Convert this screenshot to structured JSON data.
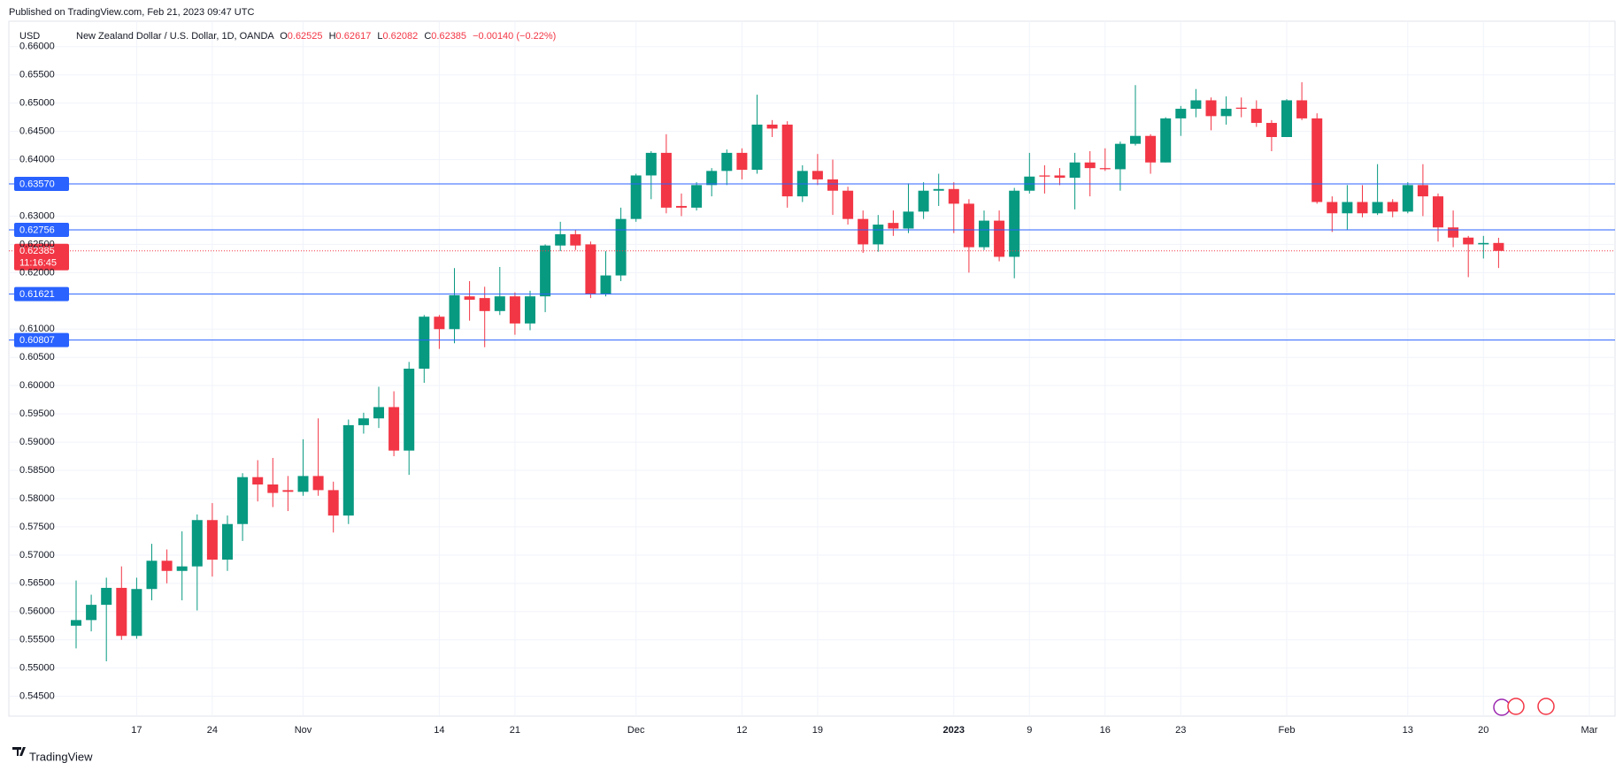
{
  "header": {
    "published": "Published on TradingView.com, Feb 21, 2023 09:47 UTC",
    "footer": "TradingView"
  },
  "chart_data": {
    "type": "candlestick",
    "currency": "USD",
    "symbol": "New Zealand Dollar / U.S. Dollar, 1D, OANDA",
    "legend_labels": {
      "open": "O",
      "high": "H",
      "low": "L",
      "close": "C"
    },
    "legend_values": {
      "open": 0.62525,
      "high": 0.62617,
      "low": 0.62082,
      "close": 0.62385
    },
    "change": "−0.00140 (−0.22%)",
    "up_color": "#089981",
    "down_color": "#f23645",
    "level_color": "#2962ff",
    "grid": true,
    "categories": [
      null,
      null,
      null,
      null,
      "17",
      null,
      null,
      null,
      null,
      "24",
      null,
      null,
      null,
      null,
      null,
      "Nov",
      null,
      null,
      null,
      null,
      null,
      null,
      null,
      null,
      "14",
      null,
      null,
      null,
      null,
      "21",
      null,
      null,
      null,
      null,
      null,
      null,
      null,
      "Dec",
      null,
      null,
      null,
      null,
      null,
      null,
      "12",
      null,
      null,
      null,
      null,
      "19",
      null,
      null,
      null,
      null,
      null,
      null,
      null,
      null,
      "2023",
      null,
      null,
      null,
      null,
      "9",
      null,
      null,
      null,
      null,
      "16",
      null,
      null,
      null,
      null,
      "23",
      null,
      null,
      null,
      null,
      null,
      null,
      "Feb",
      null,
      null,
      null,
      null,
      null,
      null,
      null,
      "13",
      null,
      null,
      null,
      null,
      "20",
      null,
      null,
      null,
      null,
      null,
      null,
      "Mar"
    ],
    "open": [
      0.5575,
      0.5585,
      0.5612,
      0.5642,
      0.5557,
      0.564,
      0.569,
      0.5672,
      0.568,
      0.5762,
      0.5692,
      0.5755,
      0.5838,
      0.5825,
      0.5815,
      0.5812,
      0.584,
      0.5815,
      0.577,
      0.593,
      0.5942,
      0.5962,
      0.5885,
      0.603,
      0.6122,
      0.61,
      0.6158,
      0.6155,
      0.6132,
      0.6158,
      0.611,
      0.6158,
      0.6248,
      0.6268,
      0.625,
      0.6162,
      0.6195,
      0.6295,
      0.6372,
      0.6412,
      0.6318,
      0.6315,
      0.6355,
      0.638,
      0.6412,
      0.6382,
      0.6462,
      0.6462,
      0.6335,
      0.638,
      0.6365,
      0.6345,
      0.6295,
      0.625,
      0.6288,
      0.6278,
      0.6308,
      0.6345,
      0.6348,
      0.6322,
      0.6245,
      0.6292,
      0.6228,
      0.6345,
      0.6372,
      0.6372,
      0.6368,
      0.6395,
      0.6385,
      0.6383,
      0.6428,
      0.6442,
      0.6395,
      0.6473,
      0.649,
      0.6505,
      0.6477,
      0.6492,
      0.649,
      0.6465,
      0.644,
      0.6505,
      0.6473,
      0.6325,
      0.6305,
      0.6325,
      0.6305,
      0.6325,
      0.6308,
      0.6355,
      0.6335,
      0.628,
      0.6262,
      0.625,
      0.62525,
      null,
      null,
      null,
      null,
      null,
      null
    ],
    "high": [
      0.5655,
      0.563,
      0.566,
      0.568,
      0.566,
      0.572,
      0.571,
      0.5742,
      0.5772,
      0.5792,
      0.577,
      0.5845,
      0.5868,
      0.5872,
      0.584,
      0.5905,
      0.5942,
      0.583,
      0.594,
      0.5952,
      0.5998,
      0.599,
      0.6042,
      0.6125,
      0.6125,
      0.6208,
      0.6185,
      0.6175,
      0.621,
      0.6165,
      0.6168,
      0.625,
      0.629,
      0.6275,
      0.6255,
      0.6238,
      0.6315,
      0.6375,
      0.6415,
      0.6445,
      0.634,
      0.636,
      0.6385,
      0.6418,
      0.642,
      0.6515,
      0.647,
      0.6468,
      0.639,
      0.641,
      0.64,
      0.6352,
      0.631,
      0.6302,
      0.631,
      0.6358,
      0.636,
      0.6375,
      0.636,
      0.633,
      0.631,
      0.631,
      0.635,
      0.6412,
      0.639,
      0.6385,
      0.6412,
      0.6415,
      0.642,
      0.6432,
      0.6532,
      0.6445,
      0.6475,
      0.6495,
      0.6525,
      0.651,
      0.6512,
      0.651,
      0.6505,
      0.647,
      0.6507,
      0.6537,
      0.6482,
      0.6335,
      0.6355,
      0.6355,
      0.6392,
      0.633,
      0.636,
      0.6392,
      0.634,
      0.631,
      0.6265,
      0.6265,
      0.62617,
      null,
      null,
      null,
      null,
      null,
      null
    ],
    "low": [
      0.5535,
      0.5565,
      0.5512,
      0.555,
      0.5552,
      0.562,
      0.565,
      0.562,
      0.5602,
      0.5662,
      0.5672,
      0.5725,
      0.5795,
      0.5785,
      0.5778,
      0.5805,
      0.5805,
      0.574,
      0.5755,
      0.5915,
      0.5925,
      0.5875,
      0.5842,
      0.6005,
      0.6065,
      0.6075,
      0.6115,
      0.6068,
      0.6125,
      0.609,
      0.6098,
      0.613,
      0.6238,
      0.624,
      0.6155,
      0.6158,
      0.6185,
      0.629,
      0.633,
      0.6305,
      0.63,
      0.631,
      0.6335,
      0.6355,
      0.6365,
      0.6375,
      0.644,
      0.6315,
      0.6325,
      0.6355,
      0.6302,
      0.6285,
      0.6235,
      0.6237,
      0.6265,
      0.627,
      0.6295,
      0.6318,
      0.627,
      0.62,
      0.624,
      0.622,
      0.619,
      0.634,
      0.634,
      0.6355,
      0.6312,
      0.6335,
      0.638,
      0.6345,
      0.6425,
      0.6375,
      0.6395,
      0.6442,
      0.6475,
      0.6452,
      0.6462,
      0.6475,
      0.6458,
      0.6415,
      0.644,
      0.647,
      0.6322,
      0.6272,
      0.6275,
      0.6298,
      0.6302,
      0.6298,
      0.6305,
      0.63,
      0.6255,
      0.6245,
      0.6192,
      0.6225,
      0.62082,
      null,
      null,
      null,
      null,
      null,
      null
    ],
    "close": [
      0.5585,
      0.5612,
      0.5642,
      0.5557,
      0.564,
      0.569,
      0.5672,
      0.568,
      0.5762,
      0.5692,
      0.5755,
      0.5838,
      0.5825,
      0.581,
      0.5812,
      0.584,
      0.5815,
      0.577,
      0.593,
      0.5942,
      0.5962,
      0.5885,
      0.603,
      0.6122,
      0.61,
      0.616,
      0.6152,
      0.6132,
      0.6158,
      0.611,
      0.6158,
      0.6248,
      0.6268,
      0.6248,
      0.6162,
      0.6195,
      0.6295,
      0.6372,
      0.6412,
      0.6315,
      0.6315,
      0.6355,
      0.638,
      0.6412,
      0.6382,
      0.6462,
      0.6455,
      0.6335,
      0.638,
      0.6365,
      0.6345,
      0.6295,
      0.625,
      0.6285,
      0.6278,
      0.6308,
      0.6345,
      0.6348,
      0.6322,
      0.6245,
      0.6292,
      0.6228,
      0.6345,
      0.637,
      0.637,
      0.6368,
      0.6395,
      0.6385,
      0.6383,
      0.6428,
      0.6442,
      0.6395,
      0.6473,
      0.649,
      0.6505,
      0.6477,
      0.649,
      0.649,
      0.6465,
      0.644,
      0.6505,
      0.6473,
      0.6325,
      0.6305,
      0.6325,
      0.6305,
      0.6325,
      0.6308,
      0.6355,
      0.6335,
      0.628,
      0.6262,
      0.625,
      0.62525,
      0.62385,
      null,
      null,
      null,
      null,
      null,
      null
    ],
    "ylim": [
      0.5415,
      0.6645
    ],
    "yticks": [
      {
        "value": 0.545,
        "label": "0.54500"
      },
      {
        "value": 0.55,
        "label": "0.55000"
      },
      {
        "value": 0.555,
        "label": "0.55500"
      },
      {
        "value": 0.56,
        "label": "0.56000"
      },
      {
        "value": 0.565,
        "label": "0.56500"
      },
      {
        "value": 0.57,
        "label": "0.57000"
      },
      {
        "value": 0.575,
        "label": "0.57500"
      },
      {
        "value": 0.58,
        "label": "0.58000"
      },
      {
        "value": 0.585,
        "label": "0.58500"
      },
      {
        "value": 0.59,
        "label": "0.59000"
      },
      {
        "value": 0.595,
        "label": "0.59500"
      },
      {
        "value": 0.6,
        "label": "0.60000"
      },
      {
        "value": 0.605,
        "label": "0.60500"
      },
      {
        "value": 0.61,
        "label": "0.61000"
      },
      {
        "value": 0.62,
        "label": "0.62000"
      },
      {
        "value": 0.625,
        "label": "0.62500"
      },
      {
        "value": 0.63,
        "label": "0.63000"
      },
      {
        "value": 0.64,
        "label": "0.64000"
      },
      {
        "value": 0.645,
        "label": "0.64500"
      },
      {
        "value": 0.65,
        "label": "0.65000"
      },
      {
        "value": 0.655,
        "label": "0.65500"
      },
      {
        "value": 0.66,
        "label": "0.66000"
      }
    ],
    "levels": [
      {
        "value": 0.6357,
        "label": "0.63570"
      },
      0.62756,
      0.61621,
      0.60807
    ],
    "last_price": 0.62385,
    "countdown": "11:16:45"
  }
}
